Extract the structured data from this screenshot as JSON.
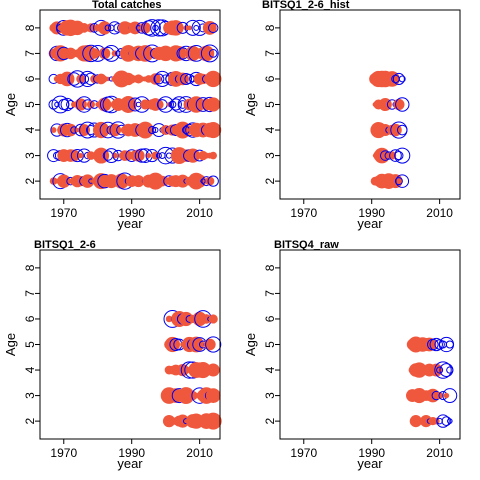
{
  "colors": {
    "positive_fill": "#f0583e",
    "negative_stroke": "#0000ee",
    "axis": "#000000",
    "background": "#ffffff"
  },
  "chart_data": [
    {
      "type": "scatter",
      "subtype": "bubble",
      "title": "Total catches",
      "xlabel": "year",
      "ylabel": "Age",
      "xlim": [
        1963,
        2016
      ],
      "ylim": [
        1.3,
        8.7
      ],
      "xticks": [
        1970,
        1990,
        2010
      ],
      "yticks": [
        2,
        3,
        4,
        5,
        6,
        7,
        8
      ],
      "grid": false,
      "legend": "none",
      "years": [
        1967,
        2014
      ],
      "ages": [
        2,
        8
      ],
      "sign_pattern": "mixed",
      "positive_share": 0.6,
      "size_seed": 11
    },
    {
      "type": "scatter",
      "subtype": "bubble",
      "title": "BITSQ1_2-6_hist",
      "xlabel": "year",
      "ylabel": "Age",
      "xlim": [
        1963,
        2016
      ],
      "ylim": [
        1.3,
        8.7
      ],
      "xticks": [
        1970,
        1990,
        2010
      ],
      "yticks": [
        2,
        3,
        4,
        5,
        6,
        7,
        8
      ],
      "grid": false,
      "legend": "none",
      "years": [
        1991,
        1999
      ],
      "ages": [
        2,
        6
      ],
      "sign_pattern": "early_positive",
      "positive_share": 0.55,
      "size_seed": 23
    },
    {
      "type": "scatter",
      "subtype": "bubble",
      "title": "BITSQ1_2-6",
      "xlabel": "year",
      "ylabel": "Age",
      "xlim": [
        1963,
        2016
      ],
      "ylim": [
        1.3,
        8.7
      ],
      "xticks": [
        1970,
        1990,
        2010
      ],
      "yticks": [
        2,
        3,
        4,
        5,
        6,
        7,
        8
      ],
      "grid": false,
      "legend": "none",
      "years": [
        2001,
        2014
      ],
      "ages": [
        2,
        6
      ],
      "sign_pattern": "mixed",
      "positive_share": 0.5,
      "size_seed": 37
    },
    {
      "type": "scatter",
      "subtype": "bubble",
      "title": "BITSQ4_raw",
      "xlabel": "year",
      "ylabel": "Age",
      "xlim": [
        1963,
        2016
      ],
      "ylim": [
        1.3,
        8.7
      ],
      "xticks": [
        1970,
        1990,
        2010
      ],
      "yticks": [
        2,
        3,
        4,
        5,
        6,
        7,
        8
      ],
      "grid": false,
      "legend": "none",
      "years": [
        2002,
        2013
      ],
      "ages": [
        2,
        5
      ],
      "sign_pattern": "early_positive",
      "positive_share": 0.5,
      "size_seed": 53
    }
  ]
}
